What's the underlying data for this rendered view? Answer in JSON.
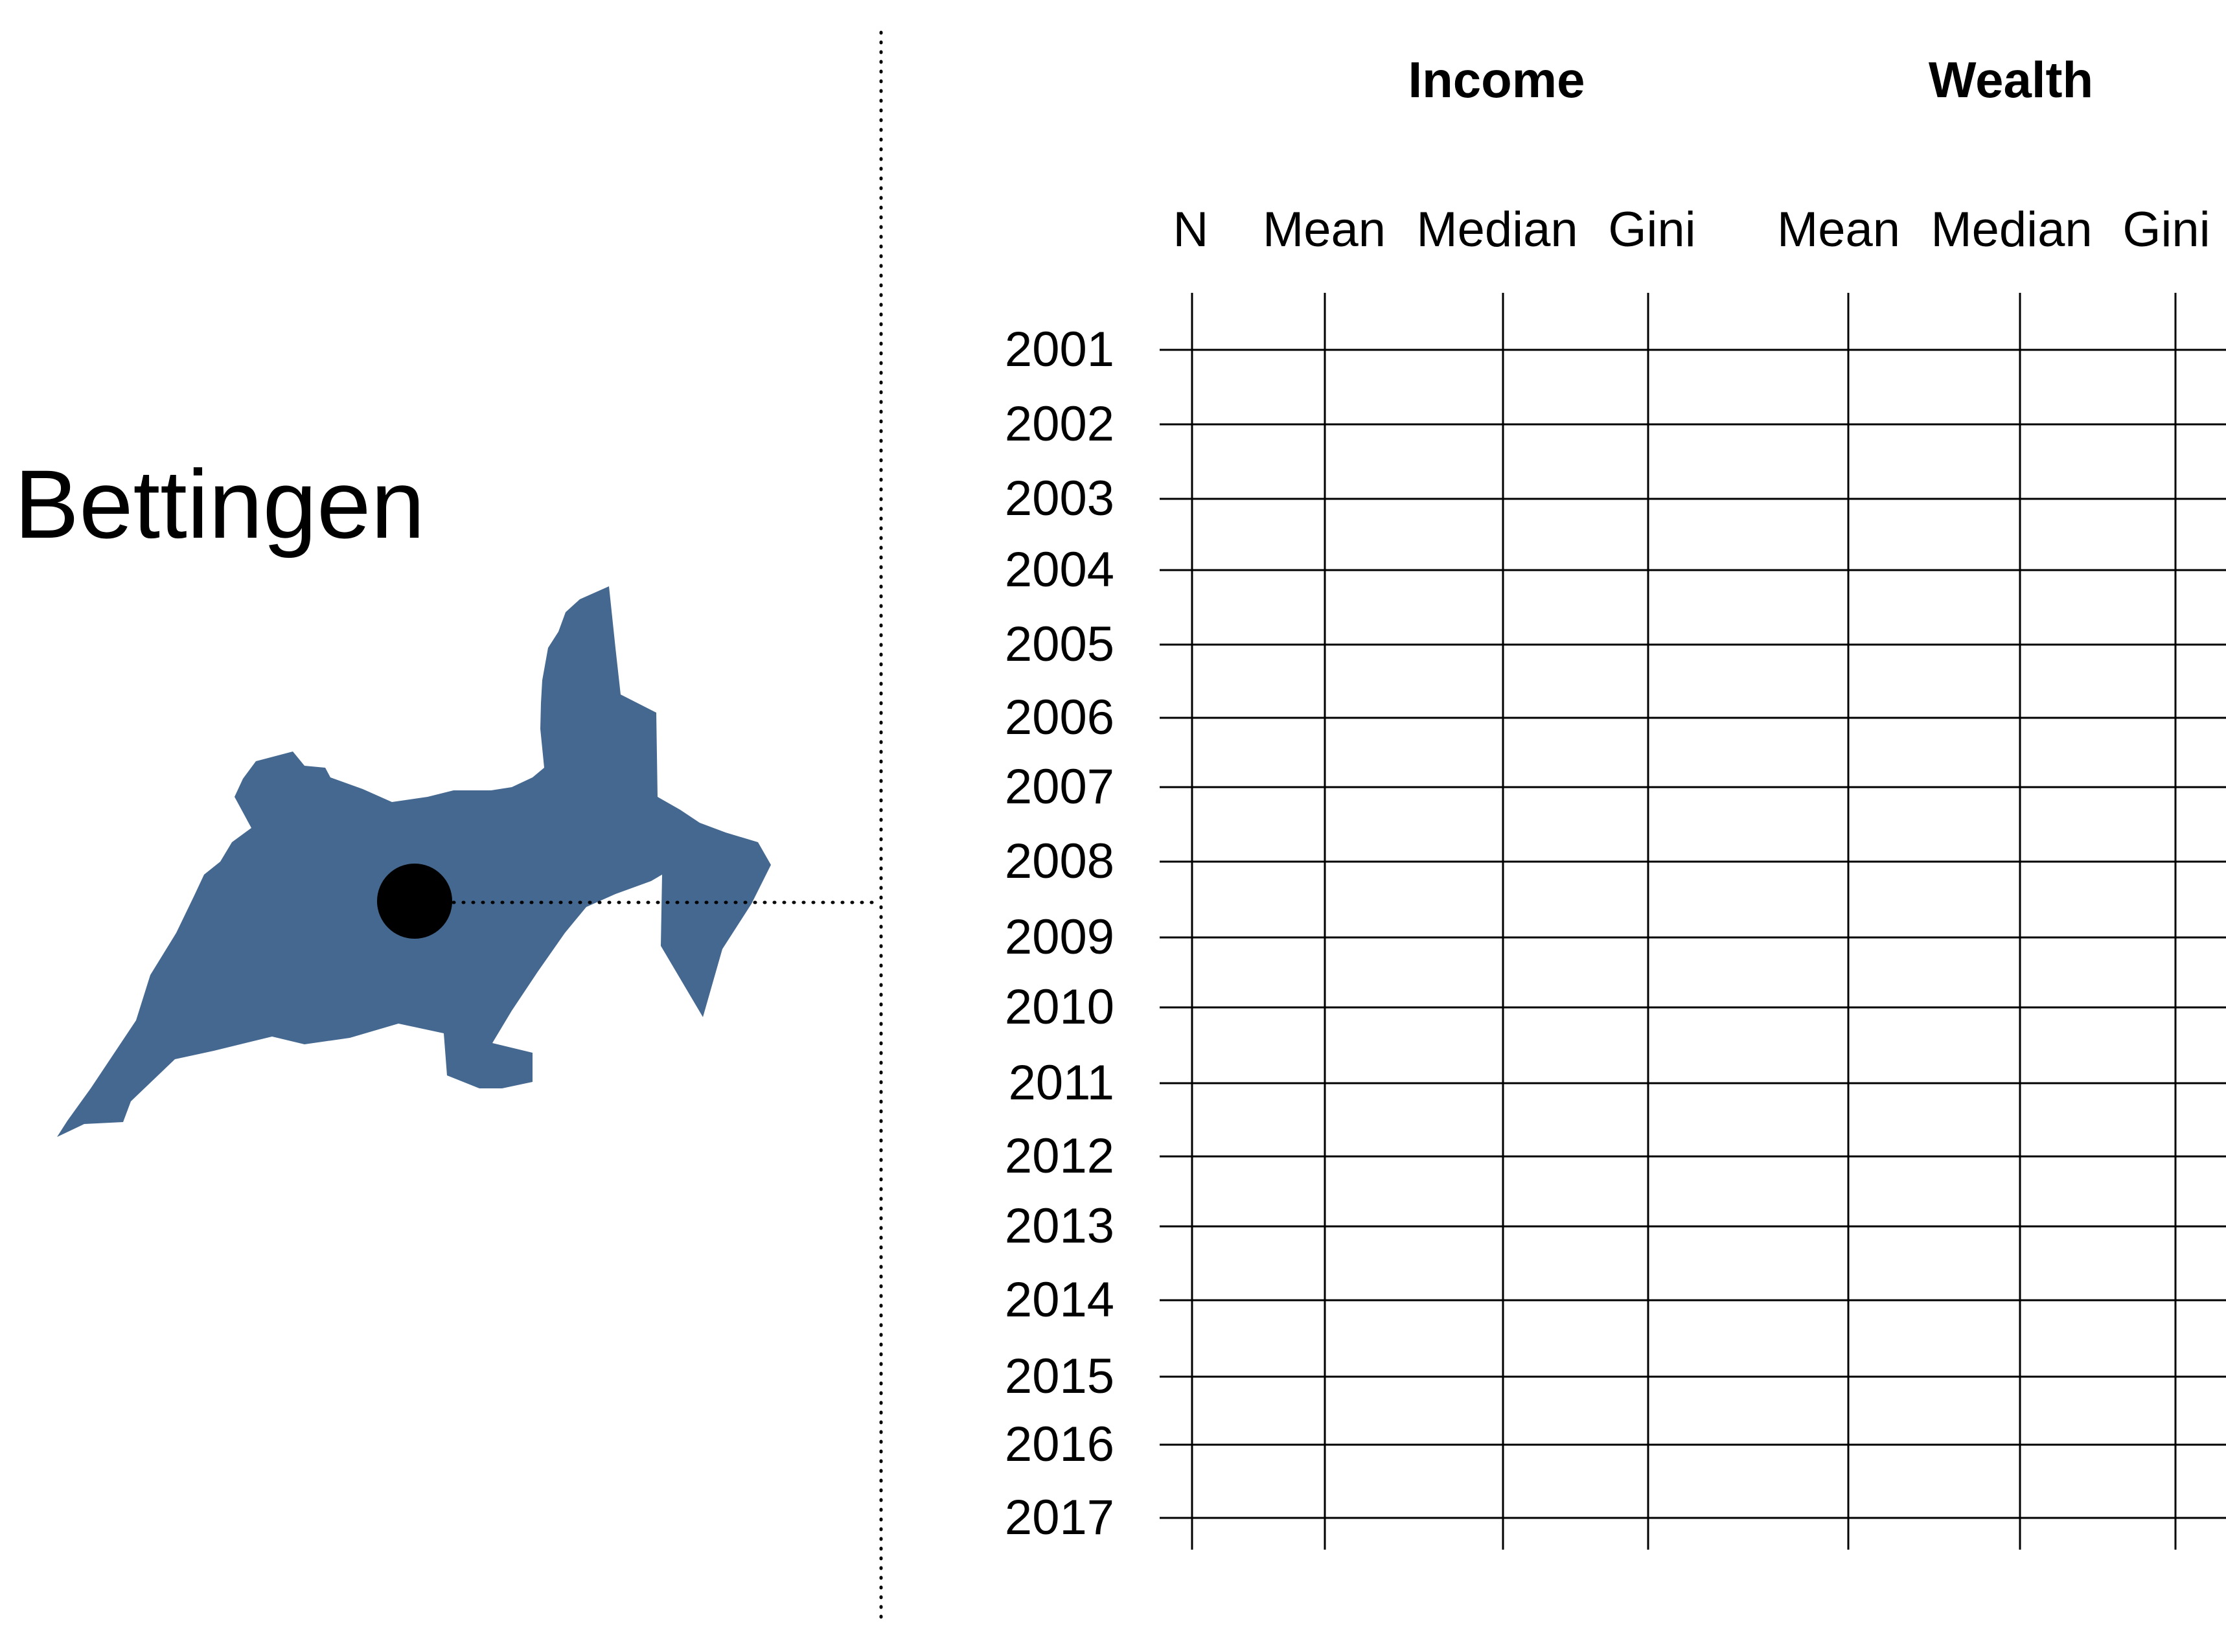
{
  "region": {
    "name": "Bettingen",
    "fill_color": "#456890",
    "marker_color": "#000000"
  },
  "table": {
    "groups": [
      {
        "label": "Income",
        "columns": [
          "Mean",
          "Median",
          "Gini"
        ]
      },
      {
        "label": "Wealth",
        "columns": [
          "Mean",
          "Median",
          "Gini"
        ]
      }
    ],
    "n_label": "N",
    "years": [
      "2001",
      "2002",
      "2003",
      "2004",
      "2005",
      "2006",
      "2007",
      "2008",
      "2009",
      "2010",
      "2011",
      "2012",
      "2013",
      "2014",
      "2015",
      "2016",
      "2017"
    ],
    "cells": []
  }
}
